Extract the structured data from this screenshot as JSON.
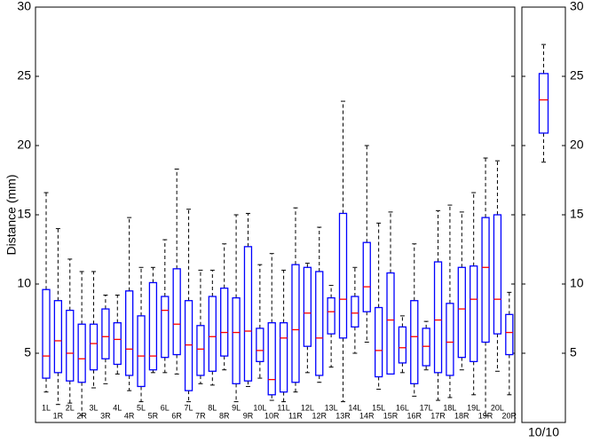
{
  "chart_data": [
    {
      "type": "box",
      "ylabel": "Distance (mm)",
      "ylim": [
        0,
        30
      ],
      "yticks": [
        5,
        10,
        15,
        20,
        25,
        30
      ],
      "box_color": "#0000ff",
      "median_color": "#ff0000",
      "categories": [
        "1L",
        "1R",
        "2L",
        "2R",
        "3L",
        "3R",
        "4L",
        "4R",
        "5L",
        "5R",
        "6L",
        "6R",
        "7L",
        "7R",
        "8L",
        "8R",
        "9L",
        "9R",
        "10L",
        "10R",
        "11L",
        "11R",
        "12L",
        "12R",
        "13L",
        "13R",
        "14L",
        "14R",
        "15L",
        "15R",
        "16L",
        "16R",
        "17L",
        "17R",
        "18L",
        "18R",
        "19L",
        "19R",
        "20L",
        "20R"
      ],
      "whisker_low": [
        2.2,
        1.3,
        1.4,
        0.5,
        2.5,
        2.8,
        3.5,
        2.3,
        1.5,
        3.6,
        3.6,
        3.5,
        1.5,
        2.8,
        2.7,
        3.8,
        1.5,
        2.6,
        3.2,
        1.6,
        1.5,
        2.2,
        3.6,
        2.9,
        4.0,
        1.5,
        5.0,
        5.8,
        2.4,
        3.5,
        3.6,
        1.9,
        3.8,
        1.6,
        1.8,
        3.8,
        2.0,
        0.5,
        3.7,
        2.0
      ],
      "q1": [
        3.2,
        3.6,
        3.0,
        2.9,
        3.8,
        4.6,
        4.2,
        3.4,
        2.6,
        3.8,
        4.7,
        4.9,
        2.3,
        3.4,
        3.7,
        4.8,
        2.8,
        3.0,
        4.4,
        2.0,
        2.2,
        2.9,
        5.5,
        3.4,
        6.4,
        6.1,
        6.9,
        8.0,
        3.3,
        3.5,
        4.3,
        2.8,
        4.1,
        3.6,
        3.4,
        4.7,
        4.4,
        5.8,
        6.4,
        4.9
      ],
      "median": [
        4.8,
        5.9,
        5.0,
        4.6,
        5.7,
        6.2,
        6.0,
        5.3,
        4.8,
        4.8,
        8.1,
        7.1,
        5.6,
        5.3,
        6.2,
        6.5,
        6.5,
        6.6,
        5.2,
        3.1,
        6.1,
        6.7,
        7.9,
        6.1,
        8.0,
        8.9,
        7.9,
        9.8,
        5.2,
        7.4,
        5.4,
        6.2,
        5.5,
        7.4,
        5.8,
        8.2,
        8.9,
        11.2,
        8.9,
        6.5
      ],
      "q3": [
        9.6,
        8.8,
        8.1,
        7.1,
        7.1,
        8.2,
        7.2,
        9.5,
        7.7,
        10.1,
        9.1,
        11.1,
        8.8,
        7.0,
        9.1,
        9.7,
        9.0,
        12.7,
        6.8,
        7.2,
        7.2,
        11.4,
        11.2,
        10.9,
        9.0,
        15.1,
        9.1,
        13.0,
        8.3,
        10.8,
        6.9,
        8.8,
        6.8,
        11.6,
        8.6,
        11.2,
        11.3,
        14.8,
        15.0,
        7.8
      ],
      "whisker_high": [
        16.6,
        14.0,
        11.8,
        10.9,
        10.9,
        9.2,
        9.2,
        14.8,
        11.2,
        11.2,
        13.2,
        18.3,
        15.4,
        11.0,
        11.0,
        12.9,
        15.0,
        15.1,
        11.4,
        12.2,
        11.0,
        15.5,
        11.5,
        14.1,
        9.9,
        23.2,
        11.2,
        20.0,
        14.4,
        15.2,
        7.7,
        12.9,
        7.3,
        15.3,
        15.7,
        15.2,
        16.6,
        19.1,
        18.9,
        9.4
      ]
    },
    {
      "type": "box",
      "ylim": [
        0,
        30
      ],
      "yticks": [
        5,
        10,
        15,
        20,
        25,
        30
      ],
      "box_color": "#0000ff",
      "median_color": "#ff0000",
      "categories": [
        "10/10"
      ],
      "whisker_low": [
        18.8
      ],
      "q1": [
        20.9
      ],
      "median": [
        23.3
      ],
      "q3": [
        25.2
      ],
      "whisker_high": [
        27.3
      ]
    }
  ]
}
